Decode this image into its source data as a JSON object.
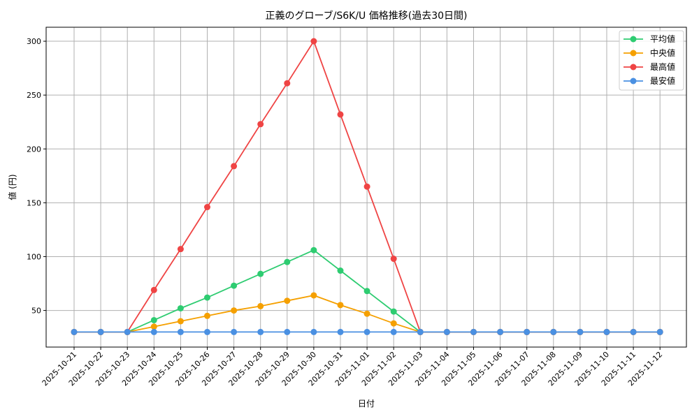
{
  "chart_data": {
    "type": "line",
    "title": "正義のグローブ/S6K/U 価格推移(過去30日間)",
    "xlabel": "日付",
    "ylabel": "値 (円)",
    "ylim": [
      16,
      313
    ],
    "yticks": [
      50,
      100,
      150,
      200,
      250,
      300
    ],
    "grid": true,
    "legend_position": "top-right",
    "categories": [
      "2025-10-21",
      "2025-10-22",
      "2025-10-23",
      "2025-10-24",
      "2025-10-25",
      "2025-10-26",
      "2025-10-27",
      "2025-10-28",
      "2025-10-29",
      "2025-10-30",
      "2025-10-31",
      "2025-11-01",
      "2025-11-02",
      "2025-11-03",
      "2025-11-04",
      "2025-11-05",
      "2025-11-06",
      "2025-11-07",
      "2025-11-08",
      "2025-11-09",
      "2025-11-10",
      "2025-11-11",
      "2025-11-12"
    ],
    "series": [
      {
        "name": "平均値",
        "color": "#2ecc71",
        "values": [
          30,
          30,
          30,
          41,
          52,
          62,
          73,
          84,
          95,
          106,
          87,
          68,
          49,
          30,
          30,
          30,
          30,
          30,
          30,
          30,
          30,
          30,
          30
        ]
      },
      {
        "name": "中央値",
        "color": "#f5a000",
        "values": [
          30,
          30,
          30,
          35,
          40,
          45,
          50,
          54,
          59,
          64,
          55,
          47,
          38,
          30,
          30,
          30,
          30,
          30,
          30,
          30,
          30,
          30,
          30
        ]
      },
      {
        "name": "最高値",
        "color": "#ef4444",
        "values": [
          30,
          30,
          30,
          69,
          107,
          146,
          184,
          223,
          261,
          300,
          232,
          165,
          98,
          30,
          30,
          30,
          30,
          30,
          30,
          30,
          30,
          30,
          30
        ]
      },
      {
        "name": "最安値",
        "color": "#4a90e2",
        "values": [
          30,
          30,
          30,
          30,
          30,
          30,
          30,
          30,
          30,
          30,
          30,
          30,
          30,
          30,
          30,
          30,
          30,
          30,
          30,
          30,
          30,
          30,
          30
        ]
      }
    ]
  }
}
